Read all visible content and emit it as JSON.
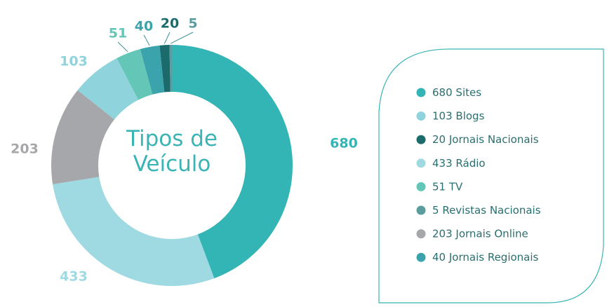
{
  "chart_data": {
    "type": "pie",
    "title": "Tipos de Veículo",
    "categories": [
      "Sites",
      "Rádio",
      "Jornais Online",
      "Blogs",
      "TV",
      "Jornais Regionais",
      "Jornais Nacionais",
      "Revistas Nacionais"
    ],
    "values": [
      680,
      433,
      203,
      103,
      51,
      40,
      20,
      5
    ],
    "colors": [
      "#33b5b5",
      "#9fd9e2",
      "#a6a7aa",
      "#8fd4dd",
      "#64c6b7",
      "#3aa3ab",
      "#1b6b6c",
      "#5b9c9e"
    ]
  }
}
